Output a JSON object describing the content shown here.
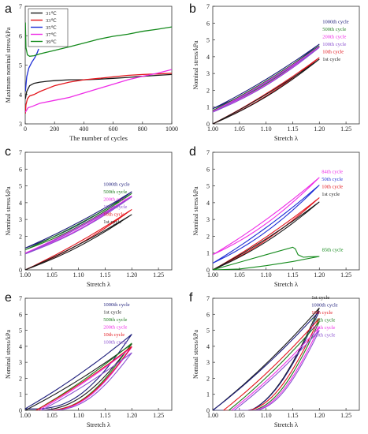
{
  "colors": {
    "black": "#1a1a1a",
    "red": "#e3141b",
    "blue": "#1f2fd6",
    "magenta": "#ee2ce6",
    "green": "#148a1c",
    "navy": "#1c1c7a",
    "purple": "#8a4fd0",
    "dark_green": "#1d7a1d"
  },
  "chart_data": [
    {
      "panel": "a",
      "type": "line",
      "xlabel": "The number of cycles",
      "ylabel": "Maximum nominal stress/kPa",
      "xlim": [
        0,
        1000
      ],
      "ylim": [
        3,
        7
      ],
      "xticks": [
        0,
        200,
        400,
        600,
        800,
        1000
      ],
      "yticks": [
        3,
        4,
        5,
        6,
        7
      ],
      "legend_position": "top-left",
      "series": [
        {
          "name": "31℃",
          "color": "black",
          "x": [
            1,
            10,
            30,
            60,
            100,
            150,
            200,
            300,
            400,
            500,
            600,
            700,
            800,
            900,
            1000
          ],
          "y": [
            3.85,
            4.1,
            4.3,
            4.38,
            4.42,
            4.45,
            4.47,
            4.5,
            4.5,
            4.52,
            4.55,
            4.58,
            4.62,
            4.65,
            4.68
          ]
        },
        {
          "name": "33℃",
          "color": "red",
          "x": [
            1,
            5,
            15,
            30,
            60,
            100,
            150,
            200,
            300,
            400,
            500,
            600,
            700,
            800,
            900,
            1000
          ],
          "y": [
            3.35,
            3.65,
            3.85,
            3.95,
            4.0,
            4.1,
            4.2,
            4.3,
            4.42,
            4.5,
            4.55,
            4.6,
            4.65,
            4.68,
            4.7,
            4.72
          ]
        },
        {
          "name": "35℃",
          "color": "blue",
          "x": [
            1,
            10,
            25,
            45,
            65,
            80,
            92
          ],
          "y": [
            4.1,
            4.6,
            4.9,
            5.1,
            5.25,
            5.4,
            5.55
          ]
        },
        {
          "name": "37℃",
          "color": "magenta",
          "x": [
            1,
            20,
            50,
            100,
            200,
            300,
            400,
            500,
            600,
            700,
            800,
            900,
            1000
          ],
          "y": [
            3.4,
            3.55,
            3.6,
            3.7,
            3.8,
            3.9,
            4.05,
            4.2,
            4.35,
            4.5,
            4.62,
            4.72,
            4.85
          ]
        },
        {
          "name": "39℃",
          "color": "green",
          "x": [
            1,
            5,
            15,
            30,
            60,
            100,
            200,
            300,
            400,
            500,
            600,
            700,
            800,
            900,
            1000
          ],
          "y": [
            6.45,
            5.6,
            5.35,
            5.3,
            5.32,
            5.38,
            5.5,
            5.62,
            5.75,
            5.88,
            5.98,
            6.05,
            6.15,
            6.22,
            6.3
          ]
        }
      ]
    },
    {
      "panel": "b",
      "type": "line",
      "xlabel": "Stretch λ",
      "ylabel": "Nominal stress/kPa",
      "xlim": [
        1.0,
        1.275
      ],
      "ylim": [
        0,
        7
      ],
      "xticks": [
        "1.00",
        "1.05",
        "1.10",
        "1.15",
        "1.20",
        "1.25"
      ],
      "yticks": [
        0,
        1,
        2,
        3,
        4,
        5,
        6,
        7
      ],
      "legend_position": "top-right",
      "legend": [
        {
          "name": "1000th cycle",
          "color": "navy"
        },
        {
          "name": "500th cycle",
          "color": "dark_green"
        },
        {
          "name": "200th cycle",
          "color": "magenta"
        },
        {
          "name": "100th cycle",
          "color": "purple"
        },
        {
          "name": "10th cycle",
          "color": "red"
        },
        {
          "name": "1st cycle",
          "color": "black"
        }
      ],
      "series": [
        {
          "name": "1000th cycle",
          "color": "navy",
          "loop": [
            1.0,
            0.9,
            1.2,
            4.75,
            0.12
          ]
        },
        {
          "name": "500th cycle",
          "color": "dark_green",
          "loop": [
            1.0,
            0.8,
            1.2,
            4.65,
            0.12
          ]
        },
        {
          "name": "200th cycle",
          "color": "magenta",
          "loop": [
            1.0,
            0.75,
            1.2,
            4.6,
            0.12
          ]
        },
        {
          "name": "100th cycle",
          "color": "purple",
          "loop": [
            1.0,
            0.7,
            1.2,
            4.55,
            0.12
          ]
        },
        {
          "name": "10th cycle",
          "color": "red",
          "loop": [
            1.0,
            0.0,
            1.2,
            3.95,
            0.1
          ]
        },
        {
          "name": "1st cycle",
          "color": "black",
          "loop": [
            1.0,
            0.0,
            1.2,
            3.85,
            0.1
          ]
        }
      ]
    },
    {
      "panel": "c",
      "type": "line",
      "xlabel": "Stretch λ",
      "ylabel": "Nominal stress/kPa",
      "xlim": [
        1.0,
        1.275
      ],
      "ylim": [
        0,
        7
      ],
      "xticks": [
        "1.00",
        "1.05",
        "1.10",
        "1.15",
        "1.20",
        "1.25"
      ],
      "yticks": [
        0,
        1,
        2,
        3,
        4,
        5,
        6,
        7
      ],
      "legend_position": "top-right",
      "legend": [
        {
          "name": "1000th cycle",
          "color": "navy"
        },
        {
          "name": "500th cycle",
          "color": "dark_green"
        },
        {
          "name": "200th cycle",
          "color": "magenta"
        },
        {
          "name": "100th cycle",
          "color": "purple"
        },
        {
          "name": "10th cycle",
          "color": "red"
        },
        {
          "name": "1st cycle",
          "color": "black"
        }
      ],
      "series": [
        {
          "name": "1000th cycle",
          "color": "navy",
          "loop": [
            1.0,
            1.3,
            1.2,
            4.65,
            0.12
          ]
        },
        {
          "name": "500th cycle",
          "color": "dark_green",
          "loop": [
            1.0,
            1.2,
            1.2,
            4.55,
            0.12
          ]
        },
        {
          "name": "200th cycle",
          "color": "magenta",
          "loop": [
            1.0,
            1.0,
            1.2,
            4.4,
            0.12
          ]
        },
        {
          "name": "100th cycle",
          "color": "purple",
          "loop": [
            1.0,
            0.95,
            1.2,
            4.35,
            0.12
          ]
        },
        {
          "name": "10th cycle",
          "color": "red",
          "loop": [
            1.0,
            0.0,
            1.2,
            3.6,
            0.1
          ]
        },
        {
          "name": "1st cycle",
          "color": "black",
          "loop": [
            1.0,
            0.0,
            1.2,
            3.3,
            0.1
          ]
        }
      ]
    },
    {
      "panel": "d",
      "type": "line",
      "xlabel": "Stretch λ",
      "ylabel": "Nominal stress/kPa",
      "xlim": [
        1.0,
        1.275
      ],
      "ylim": [
        0,
        7
      ],
      "xticks": [
        "1.00",
        "1.05",
        "1.10",
        "1.15",
        "1.20",
        "1.25"
      ],
      "yticks": [
        0,
        1,
        2,
        3,
        4,
        5,
        6,
        7
      ],
      "legend_position": "top-right",
      "legend": [
        {
          "name": "84th cycle",
          "color": "magenta"
        },
        {
          "name": "50th cycle",
          "color": "blue"
        },
        {
          "name": "10th cycle",
          "color": "red"
        },
        {
          "name": "1st cycle",
          "color": "black"
        }
      ],
      "annotation": {
        "text": "85th cycle",
        "color": "green"
      },
      "series": [
        {
          "name": "84th cycle",
          "color": "magenta",
          "loop": [
            1.0,
            0.9,
            1.2,
            5.5,
            0.15
          ]
        },
        {
          "name": "50th cycle",
          "color": "blue",
          "loop": [
            1.0,
            0.4,
            1.2,
            5.05,
            0.15
          ]
        },
        {
          "name": "10th cycle",
          "color": "red",
          "loop": [
            1.0,
            0.0,
            1.2,
            4.3,
            0.12
          ]
        },
        {
          "name": "1st cycle",
          "color": "black",
          "loop": [
            1.0,
            0.0,
            1.2,
            4.05,
            0.12
          ]
        },
        {
          "name": "85th cycle",
          "color": "green",
          "x": [
            1.0,
            1.05,
            1.1,
            1.15,
            1.155,
            1.16,
            1.17,
            1.18,
            1.2,
            1.15,
            1.1,
            1.05,
            1.0
          ],
          "y": [
            0.0,
            0.45,
            0.9,
            1.35,
            1.25,
            0.9,
            0.75,
            0.78,
            0.8,
            0.5,
            0.25,
            0.05,
            0.0
          ]
        }
      ]
    },
    {
      "panel": "e",
      "type": "line",
      "xlabel": "Stretch λ",
      "ylabel": "Nominal stress/kPa",
      "xlim": [
        1.0,
        1.275
      ],
      "ylim": [
        0,
        7
      ],
      "xticks": [
        "1.00",
        "1.05",
        "1.10",
        "1.15",
        "1.20",
        "1.25"
      ],
      "yticks": [
        0,
        1,
        2,
        3,
        4,
        5,
        6,
        7
      ],
      "legend_position": "top-right",
      "legend": [
        {
          "name": "1000th cycle",
          "color": "navy"
        },
        {
          "name": "1st cycle",
          "color": "black"
        },
        {
          "name": "500th cycle",
          "color": "dark_green"
        },
        {
          "name": "200th cycle",
          "color": "magenta"
        },
        {
          "name": "10th cycle",
          "color": "red"
        },
        {
          "name": "100th cycle",
          "color": "purple"
        }
      ],
      "series": [
        {
          "name": "1000th cycle",
          "color": "navy",
          "loop": [
            1.0,
            0.1,
            1.2,
            4.75,
            0.8
          ]
        },
        {
          "name": "1st cycle",
          "color": "black",
          "loop": [
            1.0,
            0.0,
            1.2,
            4.15,
            0.8
          ]
        },
        {
          "name": "500th cycle",
          "color": "dark_green",
          "loop": [
            1.02,
            0.0,
            1.2,
            4.2,
            0.8
          ]
        },
        {
          "name": "200th cycle",
          "color": "magenta",
          "loop": [
            1.025,
            0.0,
            1.2,
            3.95,
            0.8
          ]
        },
        {
          "name": "10th cycle",
          "color": "red",
          "loop": [
            1.02,
            0.0,
            1.2,
            4.0,
            0.8
          ]
        },
        {
          "name": "100th cycle",
          "color": "purple",
          "loop": [
            1.03,
            0.0,
            1.2,
            3.6,
            0.8
          ]
        }
      ]
    },
    {
      "panel": "f",
      "type": "line",
      "xlabel": "Stretch λ",
      "ylabel": "Nominal stress/kPa",
      "xlim": [
        1.0,
        1.275
      ],
      "ylim": [
        0,
        7
      ],
      "xticks": [
        "1.00",
        "1.05",
        "1.10",
        "1.15",
        "1.20",
        "1.25"
      ],
      "yticks": [
        0,
        1,
        2,
        3,
        4,
        5,
        6,
        7
      ],
      "legend_position": "top-right",
      "legend": [
        {
          "name": "1st cycle",
          "color": "black"
        },
        {
          "name": "1000th cycle",
          "color": "navy"
        },
        {
          "name": "10th cycle",
          "color": "red"
        },
        {
          "name": "500th cycle",
          "color": "dark_green"
        },
        {
          "name": "200th cycle",
          "color": "magenta"
        },
        {
          "name": "100th cycle",
          "color": "purple"
        }
      ],
      "series": [
        {
          "name": "1st cycle",
          "color": "black",
          "loop": [
            1.0,
            0.0,
            1.2,
            6.4,
            1.0
          ]
        },
        {
          "name": "1000th cycle",
          "color": "navy",
          "loop": [
            1.0,
            0.0,
            1.2,
            6.2,
            1.0
          ]
        },
        {
          "name": "10th cycle",
          "color": "red",
          "loop": [
            1.02,
            0.0,
            1.2,
            5.75,
            0.9
          ]
        },
        {
          "name": "500th cycle",
          "color": "dark_green",
          "loop": [
            1.03,
            0.0,
            1.2,
            5.55,
            0.9
          ]
        },
        {
          "name": "200th cycle",
          "color": "magenta",
          "loop": [
            1.035,
            0.0,
            1.2,
            5.2,
            0.9
          ]
        },
        {
          "name": "100th cycle",
          "color": "purple",
          "loop": [
            1.04,
            0.0,
            1.2,
            5.0,
            0.9
          ]
        }
      ]
    }
  ]
}
